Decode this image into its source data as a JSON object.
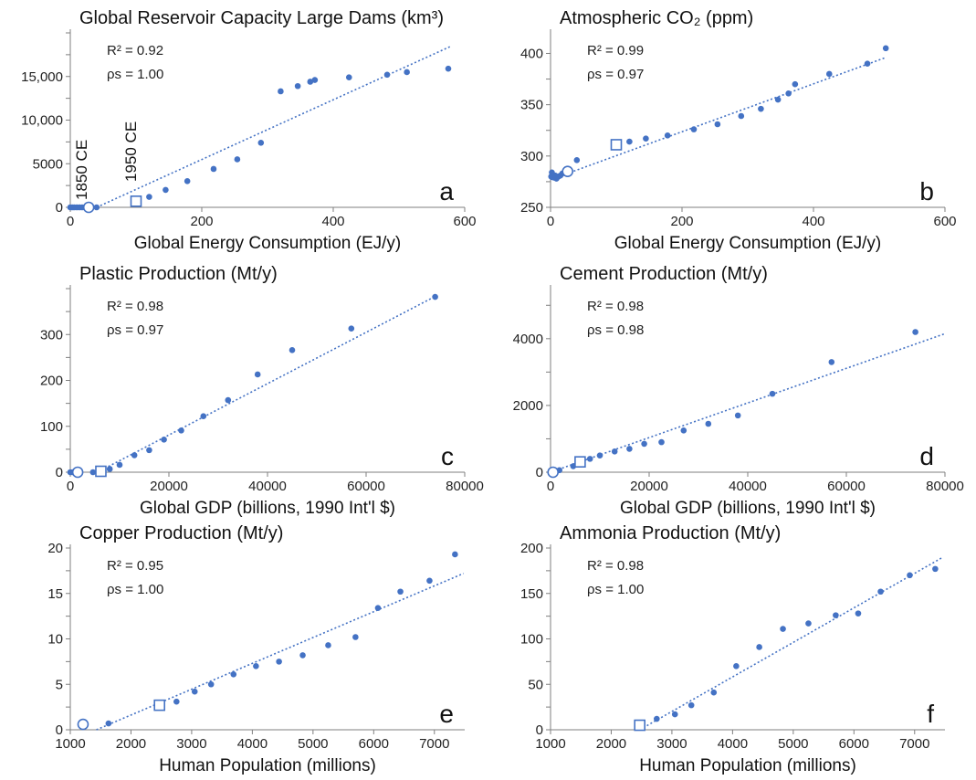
{
  "colors": {
    "marker": "#4472c4",
    "axis": "#7f7f7f",
    "text": "#111111"
  },
  "chart_data": [
    {
      "type": "scatter",
      "panel_label": "a",
      "title": "Global Reservoir Capacity Large Dams (km³)",
      "xlabel": "Global Energy Consumption (EJ/y)",
      "ylabel": "",
      "xlim": [
        0,
        600
      ],
      "ylim": [
        0,
        20000
      ],
      "x_ticks": [
        0,
        200,
        400,
        600
      ],
      "x_tick_labels": [
        "0",
        "200",
        "400",
        "600"
      ],
      "y_ticks": [
        0,
        5000,
        10000,
        15000
      ],
      "y_tick_labels": [
        "0",
        "5000",
        "10,000",
        "15,000"
      ],
      "stats": [
        "R² = 0.92",
        "ρs = 1.00"
      ],
      "annotations": [
        "1850 CE",
        "1950 CE"
      ],
      "circle_marker": {
        "x": 28,
        "y": 0
      },
      "square_marker": {
        "x": 100,
        "y": 700
      },
      "trendline": {
        "x0": 40,
        "y0": 0,
        "x1": 580,
        "y1": 18500
      },
      "points": [
        {
          "x": 0,
          "y": 0
        },
        {
          "x": 3,
          "y": 0
        },
        {
          "x": 6,
          "y": 0
        },
        {
          "x": 10,
          "y": 0
        },
        {
          "x": 14,
          "y": 0
        },
        {
          "x": 18,
          "y": 0
        },
        {
          "x": 22,
          "y": 0
        },
        {
          "x": 40,
          "y": 0
        },
        {
          "x": 120,
          "y": 1200
        },
        {
          "x": 145,
          "y": 2000
        },
        {
          "x": 178,
          "y": 3000
        },
        {
          "x": 218,
          "y": 4400
        },
        {
          "x": 254,
          "y": 5500
        },
        {
          "x": 290,
          "y": 7400
        },
        {
          "x": 320,
          "y": 13300
        },
        {
          "x": 346,
          "y": 13900
        },
        {
          "x": 365,
          "y": 14400
        },
        {
          "x": 372,
          "y": 14600
        },
        {
          "x": 424,
          "y": 14900
        },
        {
          "x": 482,
          "y": 15200
        },
        {
          "x": 512,
          "y": 15500
        },
        {
          "x": 575,
          "y": 15900
        }
      ]
    },
    {
      "type": "scatter",
      "panel_label": "b",
      "title": "Atmospheric CO₂ (ppm)",
      "xlabel": "Global Energy Consumption (EJ/y)",
      "ylabel": "",
      "xlim": [
        0,
        600
      ],
      "ylim": [
        250,
        420
      ],
      "x_ticks": [
        0,
        200,
        400,
        600
      ],
      "x_tick_labels": [
        "0",
        "200",
        "400",
        "600"
      ],
      "y_ticks": [
        250,
        300,
        350,
        400
      ],
      "y_tick_labels": [
        "250",
        "300",
        "350",
        "400"
      ],
      "stats": [
        "R² = 0.99",
        "ρs = 0.97"
      ],
      "annotations": [],
      "circle_marker": {
        "x": 26,
        "y": 285
      },
      "square_marker": {
        "x": 100,
        "y": 311
      },
      "trendline": {
        "x0": 0,
        "y0": 277,
        "x1": 510,
        "y1": 396
      },
      "points": [
        {
          "x": 1,
          "y": 280
        },
        {
          "x": 2,
          "y": 284
        },
        {
          "x": 3,
          "y": 282
        },
        {
          "x": 5,
          "y": 279
        },
        {
          "x": 7,
          "y": 281
        },
        {
          "x": 9,
          "y": 278
        },
        {
          "x": 12,
          "y": 280
        },
        {
          "x": 15,
          "y": 281
        },
        {
          "x": 18,
          "y": 283
        },
        {
          "x": 40,
          "y": 296
        },
        {
          "x": 120,
          "y": 314
        },
        {
          "x": 145,
          "y": 317
        },
        {
          "x": 178,
          "y": 320
        },
        {
          "x": 218,
          "y": 326
        },
        {
          "x": 254,
          "y": 331
        },
        {
          "x": 290,
          "y": 339
        },
        {
          "x": 320,
          "y": 346
        },
        {
          "x": 346,
          "y": 355
        },
        {
          "x": 362,
          "y": 361
        },
        {
          "x": 372,
          "y": 370
        },
        {
          "x": 424,
          "y": 380
        },
        {
          "x": 482,
          "y": 390
        },
        {
          "x": 510,
          "y": 405
        }
      ]
    },
    {
      "type": "scatter",
      "panel_label": "c",
      "title": "Plastic Production (Mt/y)",
      "xlabel": "Global GDP (billions, 1990 Int'l $)",
      "ylabel": "",
      "xlim": [
        0,
        80000
      ],
      "ylim": [
        0,
        400
      ],
      "x_ticks": [
        0,
        20000,
        40000,
        60000,
        80000
      ],
      "x_tick_labels": [
        "0",
        "20000",
        "40000",
        "60000",
        "80000"
      ],
      "y_ticks": [
        0,
        100,
        200,
        300
      ],
      "y_tick_labels": [
        "0",
        "100",
        "200",
        "300"
      ],
      "stats": [
        "R² = 0.98",
        "ρs = 0.97"
      ],
      "annotations": [],
      "circle_marker": {
        "x": 1500,
        "y": 0
      },
      "square_marker": {
        "x": 6200,
        "y": 2
      },
      "trendline": {
        "x0": 5500,
        "y0": 0,
        "x1": 74000,
        "y1": 383
      },
      "points": [
        {
          "x": 0,
          "y": 0
        },
        {
          "x": 500,
          "y": 0
        },
        {
          "x": 1000,
          "y": 0
        },
        {
          "x": 4600,
          "y": 0
        },
        {
          "x": 8000,
          "y": 7
        },
        {
          "x": 10000,
          "y": 16
        },
        {
          "x": 13000,
          "y": 37
        },
        {
          "x": 16000,
          "y": 48
        },
        {
          "x": 19000,
          "y": 71
        },
        {
          "x": 22500,
          "y": 91
        },
        {
          "x": 27000,
          "y": 122
        },
        {
          "x": 32000,
          "y": 157
        },
        {
          "x": 38000,
          "y": 213
        },
        {
          "x": 45000,
          "y": 266
        },
        {
          "x": 57000,
          "y": 313
        },
        {
          "x": 74000,
          "y": 382
        }
      ]
    },
    {
      "type": "scatter",
      "panel_label": "d",
      "title": "Cement Production (Mt/y)",
      "xlabel": "Global GDP (billions, 1990 Int'l $)",
      "ylabel": "",
      "xlim": [
        0,
        80000
      ],
      "ylim": [
        0,
        5500
      ],
      "x_ticks": [
        0,
        20000,
        40000,
        60000,
        80000
      ],
      "x_tick_labels": [
        "0",
        "20000",
        "40000",
        "60000",
        "80000"
      ],
      "y_ticks": [
        0,
        2000,
        4000
      ],
      "y_tick_labels": [
        "0",
        "2000",
        "4000"
      ],
      "stats": [
        "R² = 0.98",
        "ρs = 0.98"
      ],
      "annotations": [],
      "circle_marker": {
        "x": 500,
        "y": 0
      },
      "square_marker": {
        "x": 6000,
        "y": 310
      },
      "trendline": {
        "x0": 0,
        "y0": 0,
        "x1": 80000,
        "y1": 4150
      },
      "points": [
        {
          "x": 1000,
          "y": 40
        },
        {
          "x": 1800,
          "y": 60
        },
        {
          "x": 4600,
          "y": 180
        },
        {
          "x": 8000,
          "y": 400
        },
        {
          "x": 10000,
          "y": 500
        },
        {
          "x": 13000,
          "y": 620
        },
        {
          "x": 16000,
          "y": 700
        },
        {
          "x": 19000,
          "y": 850
        },
        {
          "x": 22500,
          "y": 900
        },
        {
          "x": 27000,
          "y": 1250
        },
        {
          "x": 32000,
          "y": 1450
        },
        {
          "x": 38000,
          "y": 1700
        },
        {
          "x": 45000,
          "y": 2350
        },
        {
          "x": 57000,
          "y": 3300
        },
        {
          "x": 74000,
          "y": 4200
        }
      ]
    },
    {
      "type": "scatter",
      "panel_label": "e",
      "title": "Copper Production (Mt/y)",
      "xlabel": "Human Population (millions)",
      "ylabel": "",
      "xlim": [
        1000,
        7500
      ],
      "ylim": [
        0,
        20
      ],
      "x_ticks": [
        1000,
        2000,
        3000,
        4000,
        5000,
        6000,
        7000
      ],
      "x_tick_labels": [
        "1000",
        "2000",
        "3000",
        "4000",
        "5000",
        "6000",
        "7000"
      ],
      "y_ticks": [
        0,
        5,
        10,
        15,
        20
      ],
      "y_tick_labels": [
        "0",
        "5",
        "10",
        "15",
        "20"
      ],
      "stats": [
        "R² = 0.95",
        "ρs = 1.00"
      ],
      "annotations": [],
      "circle_marker": {
        "x": 1210,
        "y": 0.6
      },
      "square_marker": {
        "x": 2470,
        "y": 2.7
      },
      "trendline": {
        "x0": 1430,
        "y0": 0,
        "x1": 7480,
        "y1": 17.2
      },
      "points": [
        {
          "x": 1630,
          "y": 0.7
        },
        {
          "x": 2750,
          "y": 3.1
        },
        {
          "x": 3050,
          "y": 4.2
        },
        {
          "x": 3320,
          "y": 5.0
        },
        {
          "x": 3690,
          "y": 6.1
        },
        {
          "x": 4060,
          "y": 7.0
        },
        {
          "x": 4440,
          "y": 7.5
        },
        {
          "x": 4830,
          "y": 8.2
        },
        {
          "x": 5250,
          "y": 9.3
        },
        {
          "x": 5700,
          "y": 10.2
        },
        {
          "x": 6070,
          "y": 13.4
        },
        {
          "x": 6440,
          "y": 15.2
        },
        {
          "x": 6920,
          "y": 16.4
        },
        {
          "x": 7340,
          "y": 19.3
        }
      ]
    },
    {
      "type": "scatter",
      "panel_label": "f",
      "title": "Ammonia Production (Mt/y)",
      "xlabel": "Human Population (millions)",
      "ylabel": "",
      "xlim": [
        1000,
        7500
      ],
      "ylim": [
        0,
        200
      ],
      "x_ticks": [
        1000,
        2000,
        3000,
        4000,
        5000,
        6000,
        7000
      ],
      "x_tick_labels": [
        "1000",
        "2000",
        "3000",
        "4000",
        "5000",
        "6000",
        "7000"
      ],
      "y_ticks": [
        0,
        50,
        100,
        150,
        200
      ],
      "y_tick_labels": [
        "0",
        "50",
        "100",
        "150",
        "200"
      ],
      "stats": [
        "R² = 0.98",
        "ρs = 1.00"
      ],
      "annotations": [],
      "circle_marker": null,
      "square_marker": {
        "x": 2470,
        "y": 5
      },
      "trendline": {
        "x0": 2470,
        "y0": 0,
        "x1": 7470,
        "y1": 190
      },
      "points": [
        {
          "x": 2750,
          "y": 12
        },
        {
          "x": 3050,
          "y": 17
        },
        {
          "x": 3320,
          "y": 27
        },
        {
          "x": 3690,
          "y": 41
        },
        {
          "x": 4060,
          "y": 70
        },
        {
          "x": 4440,
          "y": 91
        },
        {
          "x": 4830,
          "y": 111
        },
        {
          "x": 5250,
          "y": 117
        },
        {
          "x": 5700,
          "y": 126
        },
        {
          "x": 6070,
          "y": 128
        },
        {
          "x": 6440,
          "y": 152
        },
        {
          "x": 6920,
          "y": 170
        },
        {
          "x": 7340,
          "y": 177
        }
      ]
    }
  ]
}
